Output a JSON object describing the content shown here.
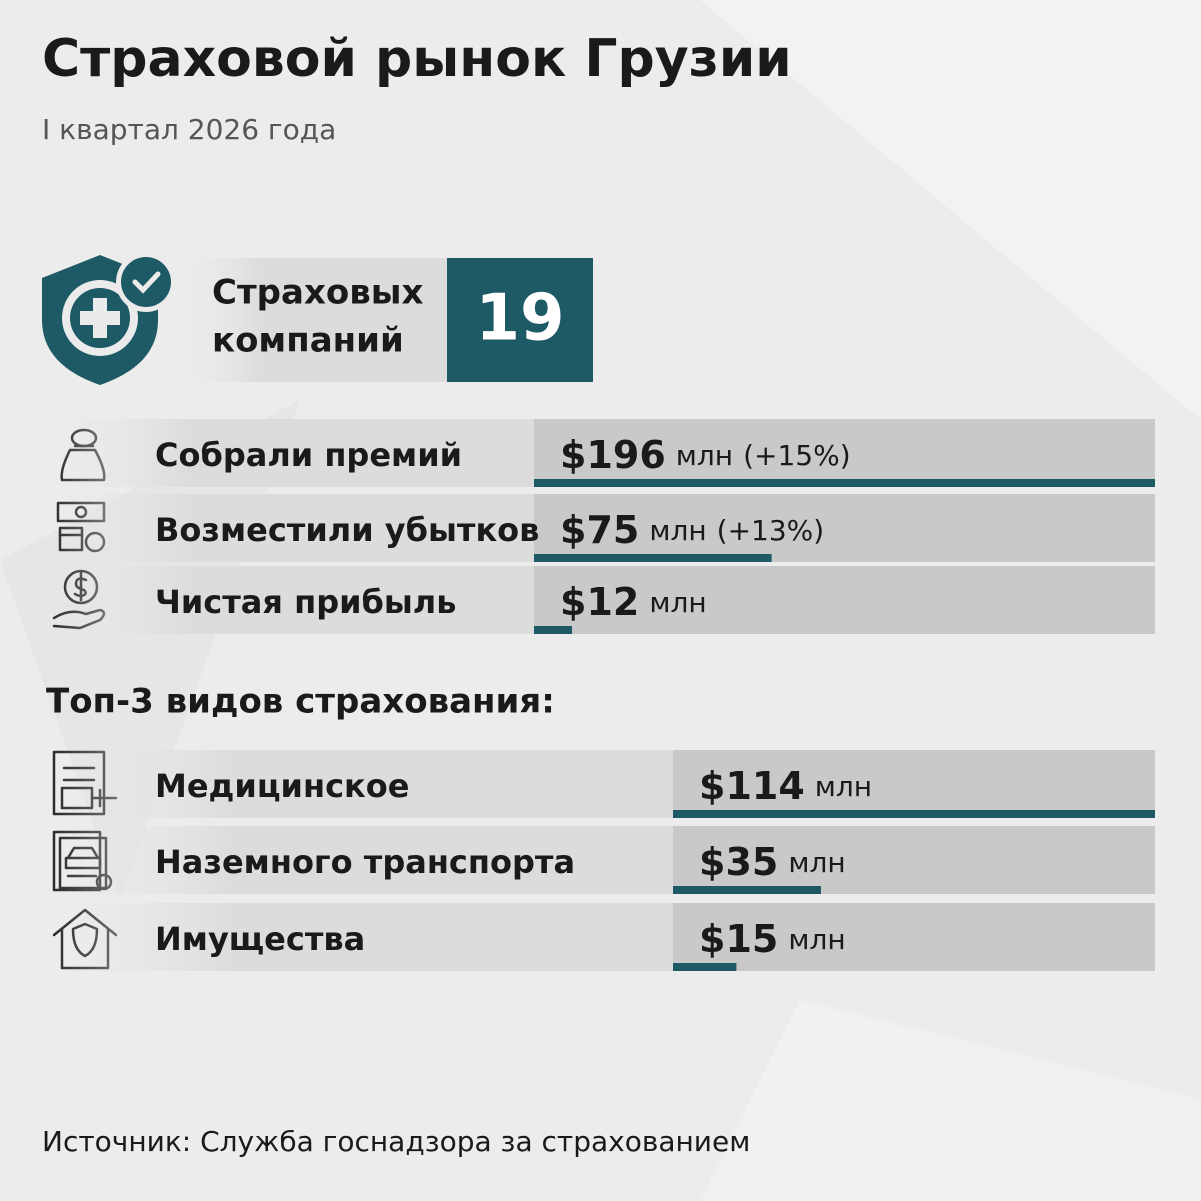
{
  "header": {
    "title": "Страховой рынок Грузии",
    "subtitle": "I квартал 2026 года"
  },
  "companies": {
    "label": [
      "Страховых",
      "компаний"
    ],
    "value": 19
  },
  "metrics": {
    "rows": [
      {
        "label": "Собрали премий",
        "value": 196,
        "value_label": "$196",
        "unit": "млн",
        "change": "(+15%)"
      },
      {
        "label": "Возместили убытков",
        "value": 75,
        "value_label": "$75",
        "unit": "млн",
        "change": "(+13%)"
      },
      {
        "label": "Чистая прибыль",
        "value": 12,
        "value_label": "$12",
        "unit": "млн"
      }
    ]
  },
  "top": {
    "title": "Топ-3 видов страхования:",
    "rows": [
      {
        "label": "Медицинское",
        "value": 114,
        "value_label": "$114",
        "unit": "млн"
      },
      {
        "label": "Наземного транспорта",
        "value": 35,
        "value_label": "$35",
        "unit": "млн"
      },
      {
        "label": "Имущества",
        "value": 15,
        "value_label": "$15",
        "unit": "млн"
      }
    ]
  },
  "source": "Источник: Служба госнадзора за страхованием"
}
